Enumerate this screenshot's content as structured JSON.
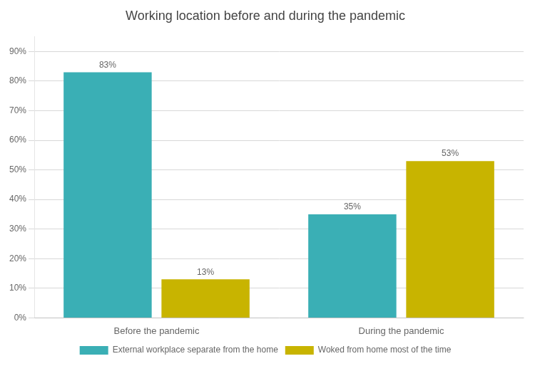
{
  "chart_data": {
    "type": "bar",
    "title": "Working location before and during the pandemic",
    "categories": [
      "Before the pandemic",
      "During the pandemic"
    ],
    "series": [
      {
        "name": "External workplace separate from the home",
        "color": "#3AAFB5",
        "values": [
          83,
          35
        ],
        "value_labels": [
          "83%",
          "35%"
        ]
      },
      {
        "name": "Woked from home most of the time",
        "color": "#C8B400",
        "values": [
          13,
          53
        ],
        "value_labels": [
          "13%",
          "53%"
        ]
      }
    ],
    "ylim": [
      0,
      95
    ],
    "yticks": [
      {
        "value": 0,
        "label": "0%"
      },
      {
        "value": 10,
        "label": "10%"
      },
      {
        "value": 20,
        "label": "20%"
      },
      {
        "value": 30,
        "label": "30%"
      },
      {
        "value": 40,
        "label": "40%"
      },
      {
        "value": 50,
        "label": "50%"
      },
      {
        "value": 60,
        "label": "60%"
      },
      {
        "value": 70,
        "label": "70%"
      },
      {
        "value": 80,
        "label": "80%"
      },
      {
        "value": 90,
        "label": "90%"
      }
    ],
    "grid": true,
    "legend": "bottom",
    "data_labels": true
  }
}
